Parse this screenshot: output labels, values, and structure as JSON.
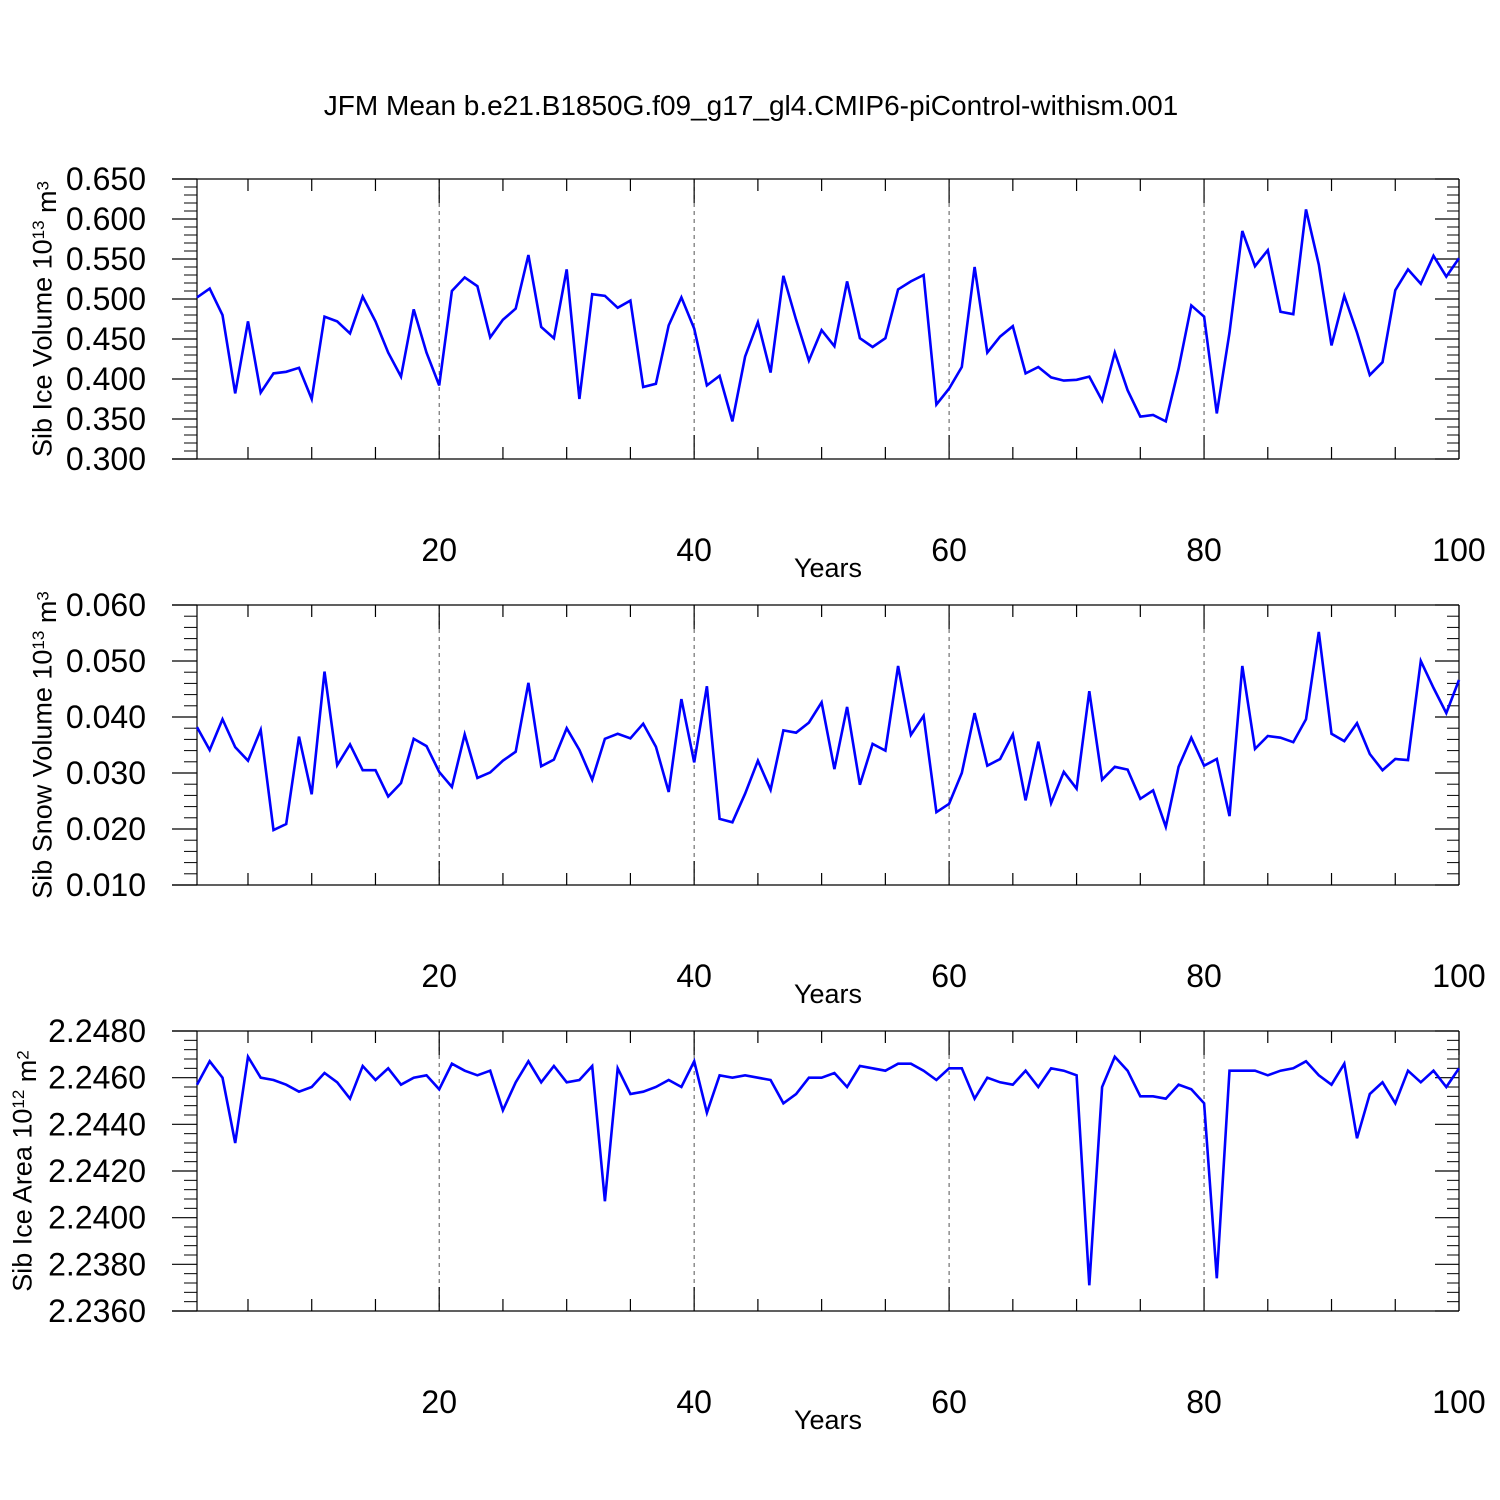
{
  "title": "JFM Mean b.e21.B1850G.f09_g17_gl4.CMIP6-piControl-withism.001",
  "chart_data": [
    {
      "type": "line",
      "ylabel_main": "Sib Ice Volume 10",
      "ylabel_exp": "13",
      "ylabel_unit": " m",
      "ylabel_unit_exp": "3",
      "xlabel": "Years",
      "xlim": [
        1,
        100
      ],
      "ylim": [
        0.3,
        0.65
      ],
      "yticks": [
        "0.300",
        "0.350",
        "0.400",
        "0.450",
        "0.500",
        "0.550",
        "0.600",
        "0.650"
      ],
      "xticks": [
        "20",
        "40",
        "60",
        "80",
        "100"
      ],
      "line_color": "#0000ff",
      "x": [
        1,
        2,
        3,
        4,
        5,
        6,
        7,
        8,
        9,
        10,
        11,
        12,
        13,
        14,
        15,
        16,
        17,
        18,
        19,
        20,
        21,
        22,
        23,
        24,
        25,
        26,
        27,
        28,
        29,
        30,
        31,
        32,
        33,
        34,
        35,
        36,
        37,
        38,
        39,
        40,
        41,
        42,
        43,
        44,
        45,
        46,
        47,
        48,
        49,
        50,
        51,
        52,
        53,
        54,
        55,
        56,
        57,
        58,
        59,
        60,
        61,
        62,
        63,
        64,
        65,
        66,
        67,
        68,
        69,
        70,
        71,
        72,
        73,
        74,
        75,
        76,
        77,
        78,
        79,
        80,
        81,
        82,
        83,
        84,
        85,
        86,
        87,
        88,
        89,
        90,
        91,
        92,
        93,
        94,
        95,
        96,
        97,
        98,
        99,
        100
      ],
      "values": [
        0.502,
        0.513,
        0.48,
        0.382,
        0.472,
        0.383,
        0.407,
        0.409,
        0.414,
        0.375,
        0.478,
        0.472,
        0.457,
        0.503,
        0.472,
        0.433,
        0.403,
        0.487,
        0.433,
        0.392,
        0.51,
        0.527,
        0.516,
        0.452,
        0.474,
        0.488,
        0.555,
        0.465,
        0.451,
        0.537,
        0.375,
        0.506,
        0.504,
        0.489,
        0.498,
        0.39,
        0.394,
        0.467,
        0.502,
        0.463,
        0.392,
        0.404,
        0.347,
        0.428,
        0.471,
        0.408,
        0.529,
        0.474,
        0.423,
        0.461,
        0.441,
        0.522,
        0.451,
        0.44,
        0.451,
        0.512,
        0.522,
        0.53,
        0.368,
        0.388,
        0.415,
        0.54,
        0.433,
        0.453,
        0.466,
        0.407,
        0.415,
        0.402,
        0.398,
        0.399,
        0.403,
        0.373,
        0.433,
        0.386,
        0.353,
        0.355,
        0.347,
        0.413,
        0.492,
        0.478,
        0.357,
        0.458,
        0.585,
        0.541,
        0.561,
        0.484,
        0.481,
        0.612,
        0.543,
        0.442,
        0.504,
        0.458,
        0.405,
        0.421,
        0.511,
        0.537,
        0.519,
        0.554,
        0.528,
        0.551
      ]
    },
    {
      "type": "line",
      "ylabel_main": "Sib Snow Volume 10",
      "ylabel_exp": "13",
      "ylabel_unit": " m",
      "ylabel_unit_exp": "3",
      "xlabel": "Years",
      "xlim": [
        1,
        100
      ],
      "ylim": [
        0.01,
        0.06
      ],
      "yticks": [
        "0.010",
        "0.020",
        "0.030",
        "0.040",
        "0.050",
        "0.060"
      ],
      "xticks": [
        "20",
        "40",
        "60",
        "80",
        "100"
      ],
      "line_color": "#0000ff",
      "x": [
        1,
        2,
        3,
        4,
        5,
        6,
        7,
        8,
        9,
        10,
        11,
        12,
        13,
        14,
        15,
        16,
        17,
        18,
        19,
        20,
        21,
        22,
        23,
        24,
        25,
        26,
        27,
        28,
        29,
        30,
        31,
        32,
        33,
        34,
        35,
        36,
        37,
        38,
        39,
        40,
        41,
        42,
        43,
        44,
        45,
        46,
        47,
        48,
        49,
        50,
        51,
        52,
        53,
        54,
        55,
        56,
        57,
        58,
        59,
        60,
        61,
        62,
        63,
        64,
        65,
        66,
        67,
        68,
        69,
        70,
        71,
        72,
        73,
        74,
        75,
        76,
        77,
        78,
        79,
        80,
        81,
        82,
        83,
        84,
        85,
        86,
        87,
        88,
        89,
        90,
        91,
        92,
        93,
        94,
        95,
        96,
        97,
        98,
        99,
        100
      ],
      "values": [
        0.0382,
        0.0341,
        0.0396,
        0.0346,
        0.0322,
        0.0377,
        0.0198,
        0.0209,
        0.0365,
        0.0262,
        0.0481,
        0.0314,
        0.0351,
        0.0305,
        0.0305,
        0.0258,
        0.0282,
        0.0361,
        0.0348,
        0.0302,
        0.0275,
        0.0369,
        0.0291,
        0.0301,
        0.0322,
        0.0338,
        0.0461,
        0.0312,
        0.0324,
        0.038,
        0.0341,
        0.0288,
        0.0361,
        0.037,
        0.0362,
        0.0388,
        0.0347,
        0.0266,
        0.0432,
        0.0319,
        0.0455,
        0.0218,
        0.0212,
        0.0263,
        0.0322,
        0.027,
        0.0376,
        0.0372,
        0.039,
        0.0426,
        0.0307,
        0.0418,
        0.0279,
        0.0352,
        0.034,
        0.0491,
        0.0368,
        0.0402,
        0.023,
        0.0245,
        0.03,
        0.0407,
        0.0313,
        0.0325,
        0.0369,
        0.0251,
        0.0356,
        0.0246,
        0.0302,
        0.0272,
        0.0446,
        0.0288,
        0.0311,
        0.0306,
        0.0254,
        0.0269,
        0.0204,
        0.0311,
        0.0363,
        0.0313,
        0.0325,
        0.0223,
        0.0491,
        0.0343,
        0.0366,
        0.0363,
        0.0355,
        0.0396,
        0.0552,
        0.037,
        0.0357,
        0.0389,
        0.0334,
        0.0305,
        0.0325,
        0.0323,
        0.05,
        0.0452,
        0.0407,
        0.0466
      ]
    },
    {
      "type": "line",
      "ylabel_main": "Sib Ice Area 10",
      "ylabel_exp": "12",
      "ylabel_unit": " m",
      "ylabel_unit_exp": "2",
      "xlabel": "Years",
      "xlim": [
        1,
        100
      ],
      "ylim": [
        2.236,
        2.248
      ],
      "yticks": [
        "2.2360",
        "2.2380",
        "2.2400",
        "2.2420",
        "2.2440",
        "2.2460",
        "2.2480"
      ],
      "xticks": [
        "20",
        "40",
        "60",
        "80",
        "100"
      ],
      "line_color": "#0000ff",
      "x": [
        1,
        2,
        3,
        4,
        5,
        6,
        7,
        8,
        9,
        10,
        11,
        12,
        13,
        14,
        15,
        16,
        17,
        18,
        19,
        20,
        21,
        22,
        23,
        24,
        25,
        26,
        27,
        28,
        29,
        30,
        31,
        32,
        33,
        34,
        35,
        36,
        37,
        38,
        39,
        40,
        41,
        42,
        43,
        44,
        45,
        46,
        47,
        48,
        49,
        50,
        51,
        52,
        53,
        54,
        55,
        56,
        57,
        58,
        59,
        60,
        61,
        62,
        63,
        64,
        65,
        66,
        67,
        68,
        69,
        70,
        71,
        72,
        73,
        74,
        75,
        76,
        77,
        78,
        79,
        80,
        81,
        82,
        83,
        84,
        85,
        86,
        87,
        88,
        89,
        90,
        91,
        92,
        93,
        94,
        95,
        96,
        97,
        98,
        99,
        100
      ],
      "values": [
        2.2457,
        2.2467,
        2.246,
        2.2432,
        2.2469,
        2.246,
        2.2459,
        2.2457,
        2.2454,
        2.2456,
        2.2462,
        2.2458,
        2.2451,
        2.2465,
        2.2459,
        2.2464,
        2.2457,
        2.246,
        2.2461,
        2.2455,
        2.2466,
        2.2463,
        2.2461,
        2.2463,
        2.2446,
        2.2458,
        2.2467,
        2.2458,
        2.2465,
        2.2458,
        2.2459,
        2.2465,
        2.2407,
        2.2464,
        2.2453,
        2.2454,
        2.2456,
        2.2459,
        2.2456,
        2.2467,
        2.2445,
        2.2461,
        2.246,
        2.2461,
        2.246,
        2.2459,
        2.2449,
        2.2453,
        2.246,
        2.246,
        2.2462,
        2.2456,
        2.2465,
        2.2464,
        2.2463,
        2.2466,
        2.2466,
        2.2463,
        2.2459,
        2.2464,
        2.2464,
        2.2451,
        2.246,
        2.2458,
        2.2457,
        2.2463,
        2.2456,
        2.2464,
        2.2463,
        2.2461,
        2.2371,
        2.2456,
        2.2469,
        2.2463,
        2.2452,
        2.2452,
        2.2451,
        2.2457,
        2.2455,
        2.2449,
        2.2374,
        2.2463,
        2.2463,
        2.2463,
        2.2461,
        2.2463,
        2.2464,
        2.2467,
        2.2461,
        2.2457,
        2.2466,
        2.2434,
        2.2453,
        2.2458,
        2.2449,
        2.2463,
        2.2458,
        2.2463,
        2.2456,
        2.2464
      ]
    }
  ]
}
